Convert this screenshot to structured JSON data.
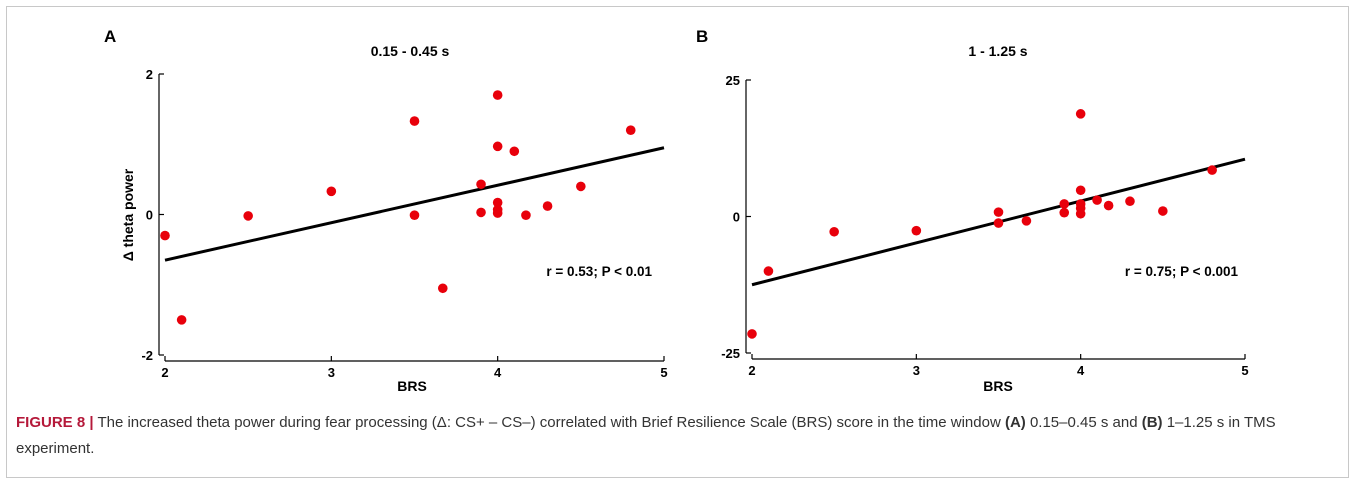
{
  "caption": {
    "figure_label": "FIGURE 8 |",
    "part1": " The increased theta power during fear processing (Δ: CS+ – CS–) correlated with Brief Resilience Scale (BRS) score in the time window ",
    "label_a": "(A)",
    "part2": " 0.15–0.45 s and ",
    "label_b": "(B)",
    "part3": " 1–1.25 s in TMS experiment."
  },
  "colors": {
    "point": "#e8000b",
    "line": "#000000",
    "caption_label": "#b5193a"
  },
  "chart_data": [
    {
      "type": "scatter",
      "panel": "A",
      "title": "0.15 - 0.45 s",
      "xlabel": "BRS",
      "ylabel": "Δ theta power",
      "xlim": [
        2,
        5
      ],
      "ylim": [
        -2,
        2
      ],
      "xticks": [
        "2",
        "3",
        "4",
        "5"
      ],
      "yticks": [
        "-2",
        "0",
        "2"
      ],
      "annotation": "r = 0.53; P < 0.01",
      "fit_line": {
        "x": [
          2.0,
          5.0
        ],
        "y": [
          -0.65,
          0.95
        ]
      },
      "points": [
        {
          "x": 2.0,
          "y": -0.3
        },
        {
          "x": 2.1,
          "y": -1.5
        },
        {
          "x": 2.5,
          "y": -0.02
        },
        {
          "x": 3.0,
          "y": 0.33
        },
        {
          "x": 3.5,
          "y": 1.33
        },
        {
          "x": 3.5,
          "y": -0.01
        },
        {
          "x": 3.67,
          "y": -1.05
        },
        {
          "x": 3.9,
          "y": 0.43
        },
        {
          "x": 3.9,
          "y": 0.03
        },
        {
          "x": 4.0,
          "y": 1.7
        },
        {
          "x": 4.0,
          "y": 0.97
        },
        {
          "x": 4.0,
          "y": 0.17
        },
        {
          "x": 4.0,
          "y": 0.07
        },
        {
          "x": 4.0,
          "y": 0.02
        },
        {
          "x": 4.1,
          "y": 0.9
        },
        {
          "x": 4.17,
          "y": -0.01
        },
        {
          "x": 4.3,
          "y": 0.12
        },
        {
          "x": 4.5,
          "y": 0.4
        },
        {
          "x": 4.8,
          "y": 1.2
        }
      ]
    },
    {
      "type": "scatter",
      "panel": "B",
      "title": "1 - 1.25 s",
      "xlabel": "BRS",
      "ylabel": "",
      "xlim": [
        2,
        5
      ],
      "ylim": [
        -25,
        25
      ],
      "xticks": [
        "2",
        "3",
        "4",
        "5"
      ],
      "yticks": [
        "-25",
        "0",
        "25"
      ],
      "annotation": "r = 0.75; P < 0.001",
      "fit_line": {
        "x": [
          2.0,
          5.0
        ],
        "y": [
          -12.5,
          10.5
        ]
      },
      "points": [
        {
          "x": 2.0,
          "y": -21.5
        },
        {
          "x": 2.1,
          "y": -10.0
        },
        {
          "x": 2.5,
          "y": -2.8
        },
        {
          "x": 3.0,
          "y": -2.6
        },
        {
          "x": 3.5,
          "y": 0.8
        },
        {
          "x": 3.5,
          "y": -1.2
        },
        {
          "x": 3.67,
          "y": -0.8
        },
        {
          "x": 3.9,
          "y": 2.3
        },
        {
          "x": 3.9,
          "y": 0.7
        },
        {
          "x": 4.0,
          "y": 18.8
        },
        {
          "x": 4.0,
          "y": 4.8
        },
        {
          "x": 4.0,
          "y": 2.3
        },
        {
          "x": 4.0,
          "y": 1.5
        },
        {
          "x": 4.0,
          "y": 0.5
        },
        {
          "x": 4.1,
          "y": 3.0
        },
        {
          "x": 4.17,
          "y": 2.0
        },
        {
          "x": 4.3,
          "y": 2.8
        },
        {
          "x": 4.5,
          "y": 1.0
        },
        {
          "x": 4.8,
          "y": 8.5
        }
      ]
    }
  ]
}
